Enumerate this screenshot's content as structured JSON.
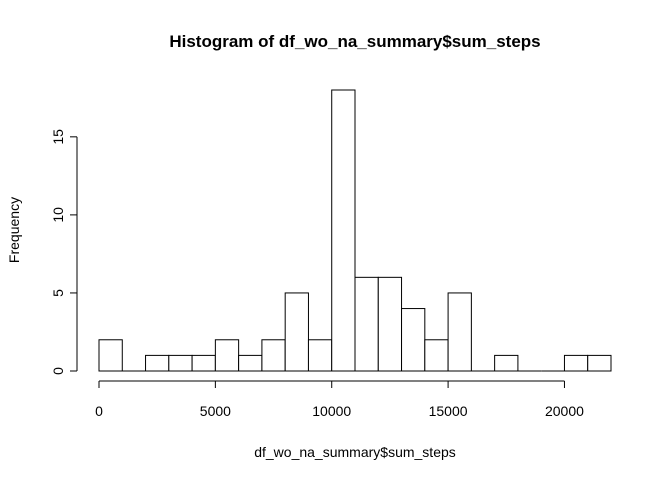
{
  "chart_data": {
    "type": "bar",
    "title": "Histogram of df_wo_na_summary$sum_steps",
    "xlabel": "df_wo_na_summary$sum_steps",
    "ylabel": "Frequency",
    "bin_width": 1000,
    "bins": [
      {
        "start": 0,
        "end": 1000,
        "count": 2
      },
      {
        "start": 1000,
        "end": 2000,
        "count": 0
      },
      {
        "start": 2000,
        "end": 3000,
        "count": 1
      },
      {
        "start": 3000,
        "end": 4000,
        "count": 1
      },
      {
        "start": 4000,
        "end": 5000,
        "count": 1
      },
      {
        "start": 5000,
        "end": 6000,
        "count": 2
      },
      {
        "start": 6000,
        "end": 7000,
        "count": 1
      },
      {
        "start": 7000,
        "end": 8000,
        "count": 2
      },
      {
        "start": 8000,
        "end": 9000,
        "count": 5
      },
      {
        "start": 9000,
        "end": 10000,
        "count": 2
      },
      {
        "start": 10000,
        "end": 11000,
        "count": 18
      },
      {
        "start": 11000,
        "end": 12000,
        "count": 6
      },
      {
        "start": 12000,
        "end": 13000,
        "count": 6
      },
      {
        "start": 13000,
        "end": 14000,
        "count": 4
      },
      {
        "start": 14000,
        "end": 15000,
        "count": 2
      },
      {
        "start": 15000,
        "end": 16000,
        "count": 5
      },
      {
        "start": 16000,
        "end": 17000,
        "count": 0
      },
      {
        "start": 17000,
        "end": 18000,
        "count": 1
      },
      {
        "start": 18000,
        "end": 19000,
        "count": 0
      },
      {
        "start": 19000,
        "end": 20000,
        "count": 0
      },
      {
        "start": 20000,
        "end": 21000,
        "count": 1
      },
      {
        "start": 21000,
        "end": 22000,
        "count": 1
      }
    ],
    "xlim": [
      0,
      22000
    ],
    "ylim": [
      0,
      18
    ],
    "x_ticks": [
      0,
      5000,
      10000,
      15000,
      20000
    ],
    "y_ticks": [
      0,
      5,
      10,
      15
    ],
    "grid": false,
    "legend": "none"
  }
}
